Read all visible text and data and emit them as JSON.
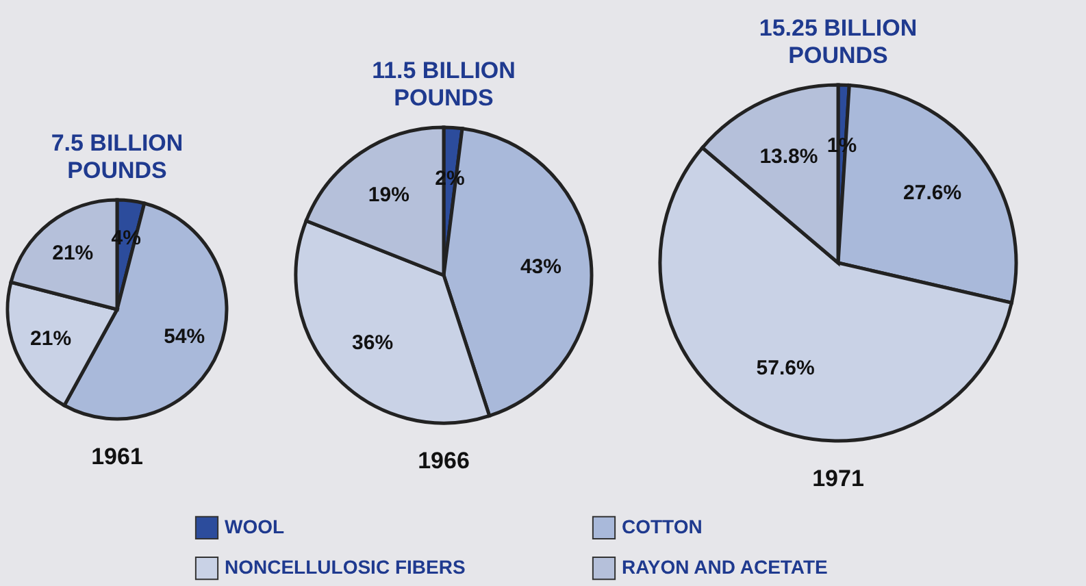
{
  "chart_data": [
    {
      "type": "pie",
      "title": "7.5 BILLION POUNDS",
      "xlabel": "1961",
      "categories": [
        "WOOL",
        "COTTON",
        "NONCELLULOSIC FIBERS",
        "RAYON AND ACETATE"
      ],
      "values": [
        4,
        54,
        21,
        21
      ],
      "value_labels": [
        "4%",
        "54%",
        "21%",
        "21%"
      ],
      "colors": [
        "#2c4c9c",
        "#a9b9da",
        "#c9d2e6",
        "#b5c0da"
      ],
      "legend": "bottom"
    },
    {
      "type": "pie",
      "title": "11.5 BILLION POUNDS",
      "xlabel": "1966",
      "categories": [
        null,
        null,
        null,
        null
      ],
      "values": [
        2,
        43,
        36,
        19
      ],
      "value_labels": [
        "2%",
        "43%",
        "36%",
        "19%"
      ],
      "colors": [
        "#2c4c9c",
        "#a9b9da",
        "#c9d2e6",
        "#b5c0da"
      ]
    },
    {
      "type": "pie",
      "title": "15.25 BILLION POUNDS",
      "xlabel": "1971",
      "categories": [
        null,
        null,
        null,
        null
      ],
      "values": [
        1,
        27.6,
        57.6,
        13.8
      ],
      "value_labels": [
        "1%",
        "27.6%",
        "57.6%",
        "13.8%"
      ],
      "colors": [
        "#2c4c9c",
        "#a9b9da",
        "#c9d2e6",
        "#b5c0da"
      ]
    }
  ]
}
